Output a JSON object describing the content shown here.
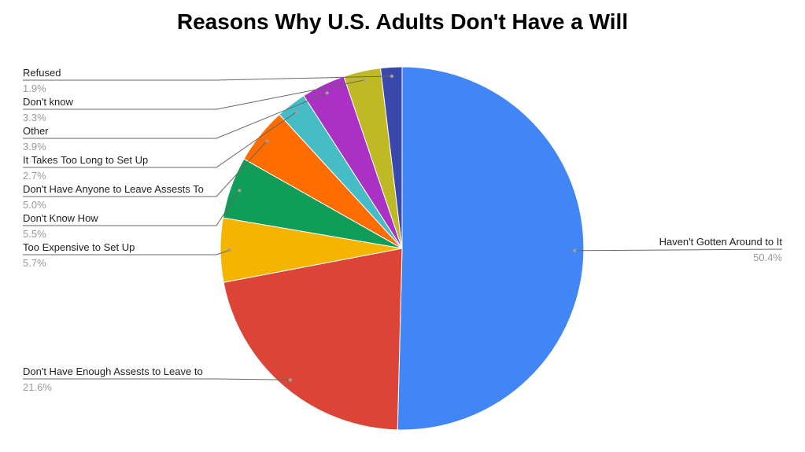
{
  "chart_data": {
    "type": "pie",
    "title": "Reasons Why U.S. Adults Don't Have a Will",
    "start_angle_deg": 0,
    "direction": "clockwise",
    "slices": [
      {
        "label": "Haven't Gotten Around to It",
        "value": 50.4,
        "value_label": "50.4%",
        "color": "#4285f4"
      },
      {
        "label": "Don't Have Enough Assests to Leave to",
        "value": 21.6,
        "value_label": "21.6%",
        "color": "#db4437"
      },
      {
        "label": "Too Expensive to Set Up",
        "value": 5.7,
        "value_label": "5.7%",
        "color": "#f4b400"
      },
      {
        "label": "Don't Know How",
        "value": 5.5,
        "value_label": "5.5%",
        "color": "#0f9d58"
      },
      {
        "label": "Don't Have Anyone to Leave Assests To",
        "value": 5.0,
        "value_label": "5.0%",
        "color": "#ff6d00"
      },
      {
        "label": "It Takes Too Long to Set Up",
        "value": 2.7,
        "value_label": "2.7%",
        "color": "#46bdc6"
      },
      {
        "label": "Other",
        "value": 3.9,
        "value_label": "3.9%",
        "color": "#ab30c4"
      },
      {
        "label": "Don't know",
        "value": 3.3,
        "value_label": "3.3%",
        "color": "#c0b926"
      },
      {
        "label": "Refused",
        "value": 1.9,
        "value_label": "1.9%",
        "color": "#3949ab"
      }
    ]
  }
}
